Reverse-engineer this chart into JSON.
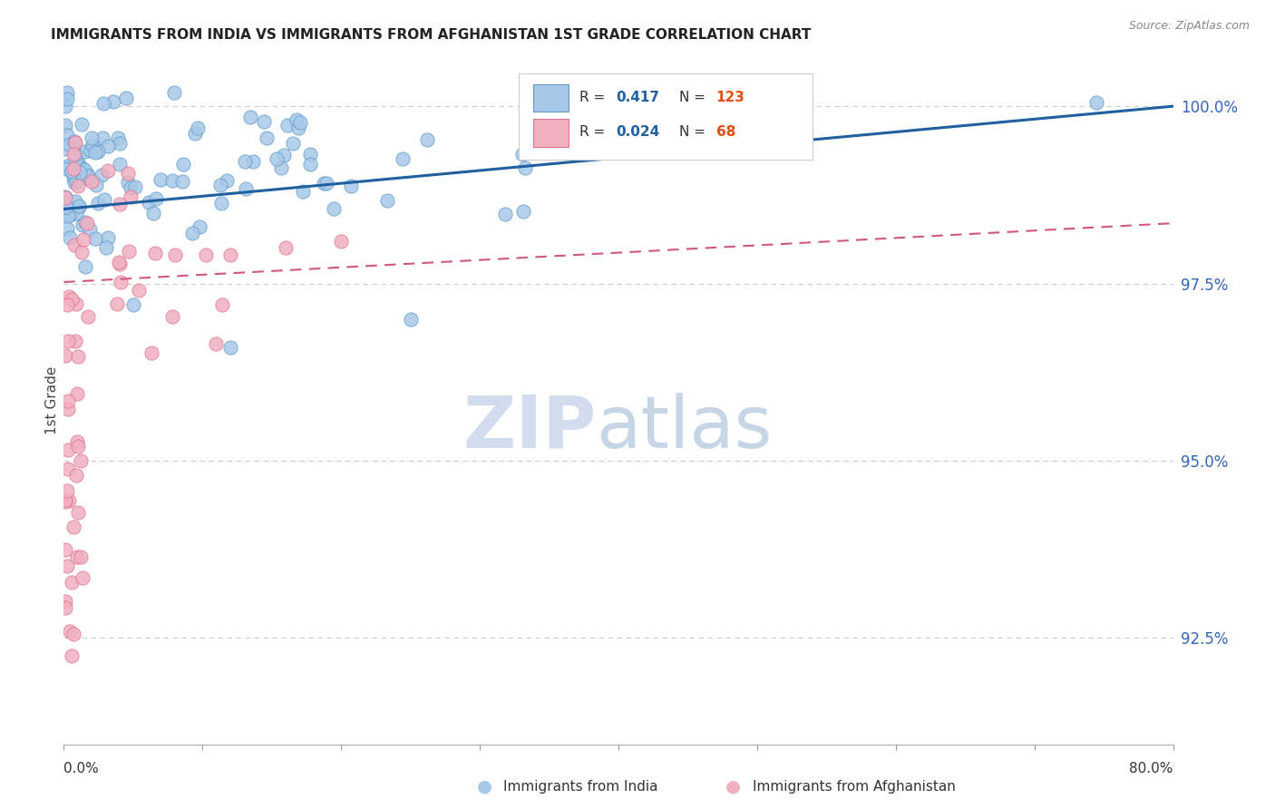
{
  "title": "IMMIGRANTS FROM INDIA VS IMMIGRANTS FROM AFGHANISTAN 1ST GRADE CORRELATION CHART",
  "source": "Source: ZipAtlas.com",
  "ylabel": "1st Grade",
  "y_ticks": [
    92.5,
    95.0,
    97.5,
    100.0
  ],
  "india_R": 0.417,
  "india_N": 123,
  "afghanistan_R": 0.024,
  "afghanistan_N": 68,
  "india_color": "#a8c8e8",
  "india_edge_color": "#5a9ac8",
  "afghanistan_color": "#f0b0c0",
  "afghanistan_edge_color": "#e07090",
  "india_line_color": "#2060a0",
  "afghanistan_line_color": "#d05878",
  "india_line_x0": 0.0,
  "india_line_x1": 0.8,
  "india_line_y0": 98.55,
  "india_line_y1": 100.0,
  "afghanistan_line_x0": 0.0,
  "afghanistan_line_x1": 0.8,
  "afghanistan_line_y0": 97.52,
  "afghanistan_line_y1": 98.35,
  "y_min": 91.0,
  "y_max": 100.7,
  "x_min": 0.0,
  "x_max": 0.8,
  "legend_R_color": "#2060a0",
  "legend_N_color": "#e05010",
  "watermark_zip_color": "#ccdaee",
  "watermark_atlas_color": "#b8cce0"
}
